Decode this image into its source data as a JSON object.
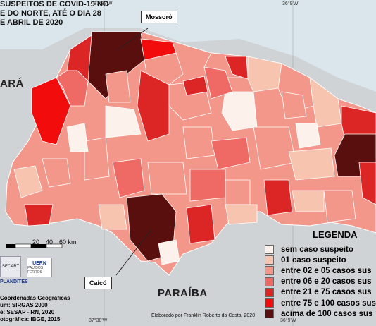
{
  "title_lines": [
    "SUSPEITOS DE COVID-19 NO",
    "E DO NORTE, ATÉ O DIA 28",
    "E ABRIL DE 2020"
  ],
  "coords": {
    "top_left": "37°38'W",
    "top_right": "36°9'W",
    "bottom_left": "37°38'W",
    "bottom_right": "36°9'W"
  },
  "places": {
    "ceara": "ARÁ",
    "paraiba": "PARAÍBA"
  },
  "callouts": {
    "mossoro": "Mossoró",
    "caico": "Caicó"
  },
  "legend": {
    "title": "LEGENDA",
    "items": [
      {
        "label": "sem caso suspeito",
        "color": "#fdf1ec"
      },
      {
        "label": "01 caso suspeito",
        "color": "#f7c4b0"
      },
      {
        "label": "entre 02 e 05 casos sus",
        "color": "#f3978b"
      },
      {
        "label": "entre 06 e 20 casos sus",
        "color": "#ef6a65"
      },
      {
        "label": "entre 21 e 75 casos sus",
        "color": "#dc2626"
      },
      {
        "label": "entre 75 e 100 casos sus",
        "color": "#f20c0c"
      },
      {
        "label": "acima de 100 casos sus",
        "color": "#5a0f0f"
      }
    ]
  },
  "scale": {
    "ticks": [
      "20",
      "40",
      "60 km"
    ]
  },
  "logos": {
    "left": "SECART",
    "right": "UERN",
    "right_sub": "PAU DOS FERROS",
    "plandites": "PLANDITES"
  },
  "footer_lines": [
    "Coordenadas Geográficas",
    "um: SIRGAS 2000",
    "e: SESAP - RN, 2020",
    "otográfica: IBGE, 2015"
  ],
  "credit": "Elaborado por Franklin Roberto da Costa, 2020",
  "colors": {
    "ocean": "#dbe6ec",
    "outside": "#d0d3d5",
    "border": "#ffffff"
  }
}
